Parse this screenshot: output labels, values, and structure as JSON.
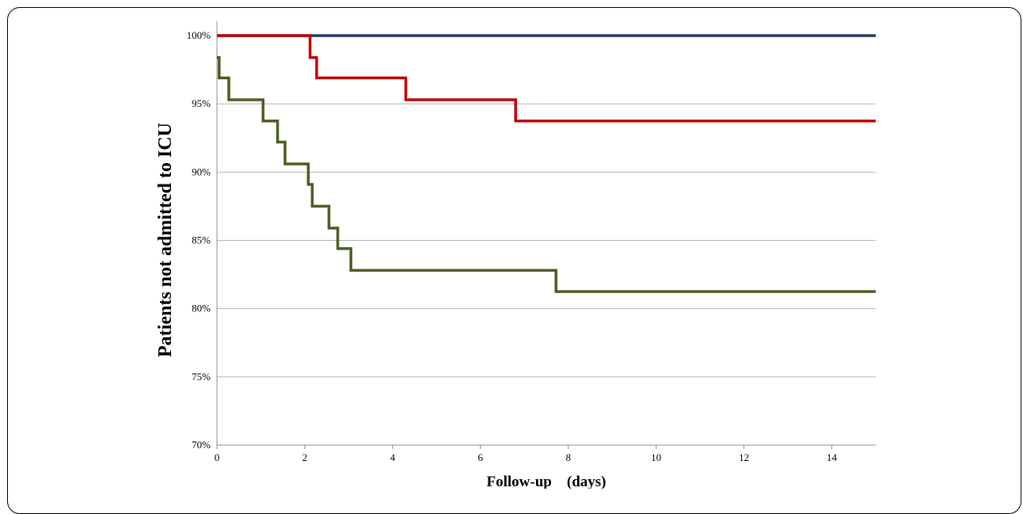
{
  "chart_data": {
    "type": "line",
    "step": true,
    "xlabel": "Follow-up    (days)",
    "ylabel": "Patients not admitted to ICU",
    "xlim": [
      0,
      15
    ],
    "ylim": [
      70,
      100
    ],
    "xticks": [
      0,
      2,
      4,
      6,
      8,
      10,
      12,
      14
    ],
    "yticks": [
      70,
      75,
      80,
      85,
      90,
      95,
      100
    ],
    "y_tick_suffix": "%",
    "grid": "horizontal",
    "series": [
      {
        "color": "#1f3a5f",
        "x": [
          0,
          15
        ],
        "y": [
          100,
          100
        ]
      },
      {
        "color": "#c00000",
        "x": [
          0,
          2.12,
          2.27,
          4.3,
          6.8,
          15
        ],
        "y": [
          100,
          98.4,
          96.9,
          95.3,
          93.75,
          93.75
        ]
      },
      {
        "color": "#4a5e23",
        "x": [
          0,
          0.05,
          0.27,
          1.05,
          1.38,
          1.55,
          2.08,
          2.17,
          2.55,
          2.75,
          3.05,
          7.72,
          15
        ],
        "y": [
          98.4,
          96.9,
          95.3,
          93.75,
          92.2,
          90.6,
          89.1,
          87.5,
          85.9,
          84.4,
          82.8,
          81.25,
          81.25
        ]
      }
    ]
  }
}
